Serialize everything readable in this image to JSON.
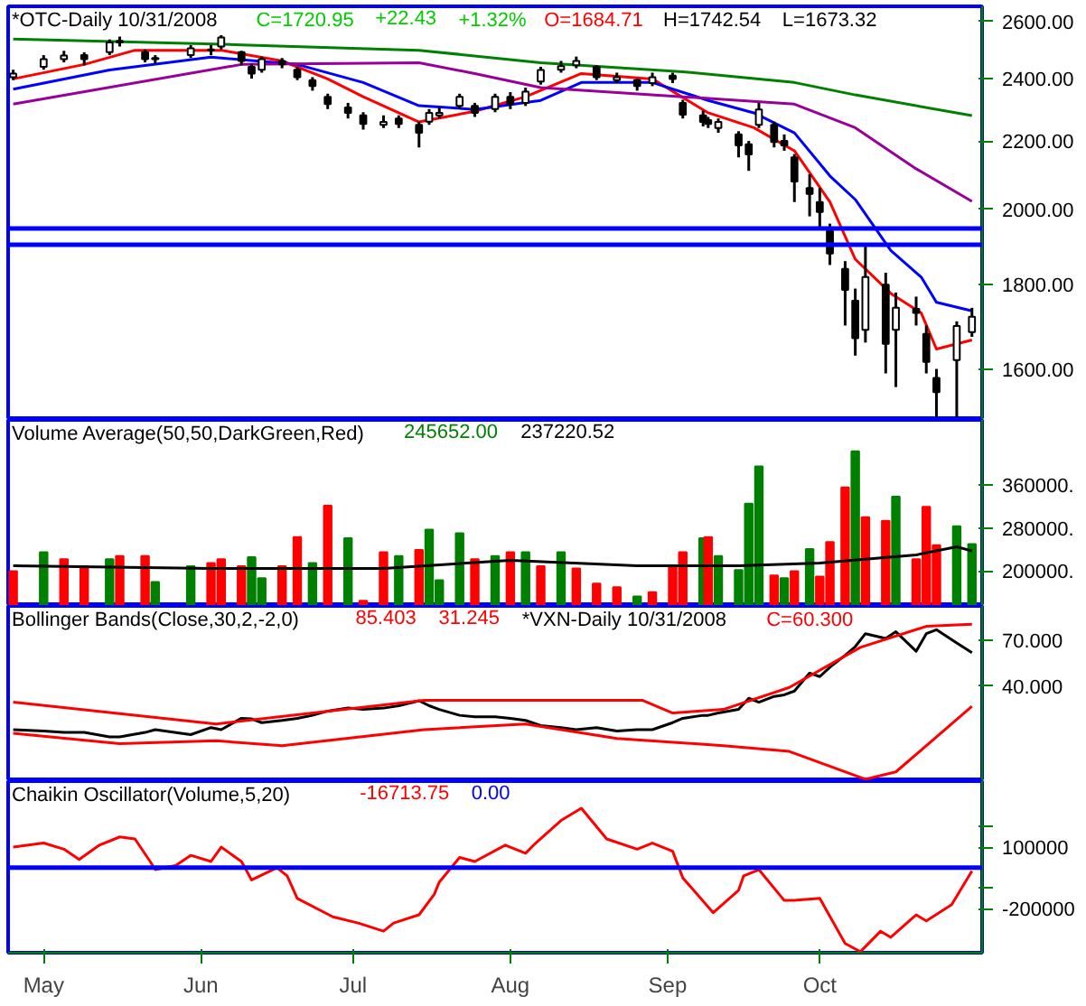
{
  "chart_data": [
    {
      "type": "candlestick",
      "title": "*OTC-Daily 10/31/2008",
      "annotations": [
        "C=1720.95",
        "+22.43",
        "+1.32%",
        "O=1684.71",
        "H=1742.54",
        "L=1673.32"
      ],
      "x": [
        "2008-04-25",
        "2008-05-01",
        "2008-05-05",
        "2008-05-09",
        "2008-05-14",
        "2008-05-16",
        "2008-05-21",
        "2008-05-23",
        "2008-05-30",
        "2008-06-03",
        "2008-06-05",
        "2008-06-09",
        "2008-06-11",
        "2008-06-13",
        "2008-06-17",
        "2008-06-20",
        "2008-06-23",
        "2008-06-26",
        "2008-06-30",
        "2008-07-03",
        "2008-07-07",
        "2008-07-10",
        "2008-07-14",
        "2008-07-16",
        "2008-07-18",
        "2008-07-22",
        "2008-07-25",
        "2008-07-29",
        "2008-08-01",
        "2008-08-04",
        "2008-08-07",
        "2008-08-11",
        "2008-08-14",
        "2008-08-18",
        "2008-08-22",
        "2008-08-26",
        "2008-08-29",
        "2008-09-02",
        "2008-09-04",
        "2008-09-08",
        "2008-09-09",
        "2008-09-11",
        "2008-09-15",
        "2008-09-17",
        "2008-09-19",
        "2008-09-22",
        "2008-09-24",
        "2008-09-26",
        "2008-09-29",
        "2008-10-01",
        "2008-10-03",
        "2008-10-06",
        "2008-10-08",
        "2008-10-10",
        "2008-10-14",
        "2008-10-16",
        "2008-10-20",
        "2008-10-22",
        "2008-10-24",
        "2008-10-28",
        "2008-10-31"
      ],
      "ohlc": [
        [
          2405,
          2430,
          2395,
          2417
        ],
        [
          2440,
          2480,
          2430,
          2466
        ],
        [
          2466,
          2495,
          2455,
          2479
        ],
        [
          2480,
          2490,
          2445,
          2466
        ],
        [
          2490,
          2535,
          2480,
          2524
        ],
        [
          2524,
          2545,
          2510,
          2530
        ],
        [
          2490,
          2500,
          2455,
          2466
        ],
        [
          2470,
          2480,
          2450,
          2466
        ],
        [
          2480,
          2515,
          2470,
          2504
        ],
        [
          2500,
          2515,
          2480,
          2497
        ],
        [
          2510,
          2550,
          2500,
          2542
        ],
        [
          2490,
          2495,
          2445,
          2460
        ],
        [
          2440,
          2450,
          2400,
          2417
        ],
        [
          2430,
          2475,
          2420,
          2466
        ],
        [
          2460,
          2470,
          2435,
          2448
        ],
        [
          2430,
          2440,
          2395,
          2405
        ],
        [
          2395,
          2405,
          2360,
          2375
        ],
        [
          2340,
          2350,
          2300,
          2316
        ],
        [
          2305,
          2320,
          2270,
          2288
        ],
        [
          2280,
          2290,
          2235,
          2253
        ],
        [
          2250,
          2280,
          2240,
          2259
        ],
        [
          2270,
          2280,
          2240,
          2253
        ],
        [
          2250,
          2260,
          2180,
          2225
        ],
        [
          2260,
          2300,
          2250,
          2288
        ],
        [
          2280,
          2305,
          2270,
          2288
        ],
        [
          2310,
          2350,
          2300,
          2340
        ],
        [
          2310,
          2320,
          2275,
          2288
        ],
        [
          2300,
          2350,
          2290,
          2340
        ],
        [
          2340,
          2355,
          2300,
          2316
        ],
        [
          2320,
          2370,
          2310,
          2357
        ],
        [
          2390,
          2440,
          2380,
          2429
        ],
        [
          2430,
          2460,
          2420,
          2442
        ],
        [
          2445,
          2475,
          2435,
          2460
        ],
        [
          2440,
          2445,
          2395,
          2405
        ],
        [
          2395,
          2420,
          2385,
          2405
        ],
        [
          2395,
          2400,
          2360,
          2375
        ],
        [
          2385,
          2420,
          2375,
          2405
        ],
        [
          2410,
          2420,
          2385,
          2399
        ],
        [
          2320,
          2330,
          2270,
          2282
        ],
        [
          2280,
          2295,
          2245,
          2259
        ],
        [
          2265,
          2275,
          2240,
          2253
        ],
        [
          2240,
          2270,
          2225,
          2259
        ],
        [
          2220,
          2230,
          2150,
          2186
        ],
        [
          2190,
          2200,
          2110,
          2159
        ],
        [
          2250,
          2320,
          2240,
          2299
        ],
        [
          2250,
          2260,
          2180,
          2197
        ],
        [
          2200,
          2220,
          2170,
          2186
        ],
        [
          2150,
          2160,
          2020,
          2079
        ],
        [
          2060,
          2100,
          1980,
          2043
        ],
        [
          2020,
          2060,
          1950,
          1992
        ],
        [
          1940,
          1960,
          1850,
          1880
        ],
        [
          1840,
          1860,
          1700,
          1787
        ],
        [
          1760,
          1790,
          1630,
          1670
        ],
        [
          1690,
          1900,
          1660,
          1819
        ],
        [
          1800,
          1830,
          1590,
          1657
        ],
        [
          1690,
          1780,
          1560,
          1743
        ],
        [
          1740,
          1770,
          1700,
          1730
        ],
        [
          1680,
          1700,
          1590,
          1616
        ],
        [
          1580,
          1600,
          1495,
          1549
        ],
        [
          1620,
          1710,
          1495,
          1699
        ],
        [
          1684.71,
          1742.54,
          1673.32,
          1720.95
        ]
      ],
      "series": [
        {
          "type": "line",
          "color": "#ff0000",
          "x": [
            "2008-04-25",
            "2008-05-09",
            "2008-05-19",
            "2008-06-05",
            "2008-06-17",
            "2008-06-26",
            "2008-07-03",
            "2008-07-14",
            "2008-07-25",
            "2008-08-04",
            "2008-08-15",
            "2008-08-29",
            "2008-09-09",
            "2008-09-18",
            "2008-09-26",
            "2008-10-03",
            "2008-10-08",
            "2008-10-15",
            "2008-10-21",
            "2008-10-24",
            "2008-10-31"
          ],
          "values": [
            2399,
            2448,
            2497,
            2497,
            2460,
            2399,
            2340,
            2259,
            2293,
            2340,
            2417,
            2399,
            2288,
            2241,
            2170,
            2020,
            1865,
            1778,
            1730,
            1645,
            1666
          ]
        },
        {
          "type": "line",
          "color": "#0000ff",
          "x": [
            "2008-04-25",
            "2008-05-14",
            "2008-06-03",
            "2008-06-20",
            "2008-07-03",
            "2008-07-14",
            "2008-07-25",
            "2008-08-07",
            "2008-08-15",
            "2008-08-29",
            "2008-09-09",
            "2008-09-18",
            "2008-09-26",
            "2008-10-03",
            "2008-10-08",
            "2008-10-15",
            "2008-10-21",
            "2008-10-24",
            "2008-10-31"
          ],
          "values": [
            2365,
            2429,
            2473,
            2448,
            2387,
            2311,
            2299,
            2328,
            2387,
            2387,
            2328,
            2288,
            2225,
            2095,
            2027,
            1888,
            1819,
            1756,
            1735
          ]
        },
        {
          "type": "line",
          "color": "#990099",
          "x": [
            "2008-04-25",
            "2008-06-09",
            "2008-07-14",
            "2008-07-25",
            "2008-08-07",
            "2008-09-04",
            "2008-09-26",
            "2008-10-08",
            "2008-10-20",
            "2008-10-31"
          ],
          "values": [
            2316,
            2448,
            2454,
            2417,
            2370,
            2340,
            2316,
            2241,
            2116,
            2022
          ]
        },
        {
          "type": "line",
          "color": "#008000",
          "x": [
            "2008-04-25",
            "2008-06-09",
            "2008-07-14",
            "2008-08-07",
            "2008-09-04",
            "2008-09-26",
            "2008-10-08",
            "2008-10-31"
          ],
          "values": [
            2536,
            2516,
            2497,
            2454,
            2423,
            2387,
            2346,
            2279
          ]
        }
      ],
      "ref_lines": [
        {
          "axis": "y",
          "value": 1947,
          "color": "#0000ff"
        },
        {
          "axis": "y",
          "value": 1903,
          "color": "#0000ff"
        }
      ],
      "log": true,
      "ylim": [
        1490,
        2655
      ],
      "yticks": [
        {
          "value": 1600,
          "label": "1600.00"
        },
        {
          "value": 1800,
          "label": "1800.00"
        },
        {
          "value": 2000,
          "label": "2000.00"
        },
        {
          "value": 2200,
          "label": "2200.00"
        },
        {
          "value": 2400,
          "label": "2400.00"
        },
        {
          "value": 2600,
          "label": "2600.00"
        }
      ],
      "xlim": [
        "2008-04-24",
        "2008-11-02"
      ],
      "tick_labels": "y"
    },
    {
      "type": "bar",
      "title": "Volume Average(50,50,DarkGreen,Red)",
      "annotations": [
        "245652.00",
        "237220.52"
      ],
      "x": [
        "2008-04-25",
        "2008-05-01",
        "2008-05-05",
        "2008-05-09",
        "2008-05-14",
        "2008-05-16",
        "2008-05-21",
        "2008-05-23",
        "2008-05-30",
        "2008-06-03",
        "2008-06-05",
        "2008-06-09",
        "2008-06-11",
        "2008-06-13",
        "2008-06-17",
        "2008-06-20",
        "2008-06-23",
        "2008-06-26",
        "2008-06-30",
        "2008-07-03",
        "2008-07-07",
        "2008-07-10",
        "2008-07-14",
        "2008-07-16",
        "2008-07-18",
        "2008-07-22",
        "2008-07-25",
        "2008-07-29",
        "2008-08-01",
        "2008-08-04",
        "2008-08-07",
        "2008-08-11",
        "2008-08-14",
        "2008-08-18",
        "2008-08-22",
        "2008-08-26",
        "2008-08-29",
        "2008-09-02",
        "2008-09-04",
        "2008-09-08",
        "2008-09-09",
        "2008-09-11",
        "2008-09-15",
        "2008-09-17",
        "2008-09-19",
        "2008-09-22",
        "2008-09-24",
        "2008-09-26",
        "2008-09-29",
        "2008-10-01",
        "2008-10-03",
        "2008-10-06",
        "2008-10-08",
        "2008-10-10",
        "2008-10-14",
        "2008-10-16",
        "2008-10-20",
        "2008-10-22",
        "2008-10-24",
        "2008-10-28",
        "2008-10-31"
      ],
      "series": [
        {
          "type": "bar",
          "values": [
            200000,
            235000,
            222000,
            209000,
            222000,
            228000,
            228000,
            180000,
            209000,
            215000,
            222000,
            209000,
            226000,
            187000,
            209000,
            263000,
            215000,
            321000,
            261000,
            145000,
            235000,
            228000,
            239000,
            277000,
            183000,
            270000,
            222000,
            228000,
            235000,
            235000,
            209000,
            235000,
            205000,
            177000,
            170000,
            153000,
            161000,
            209000,
            235000,
            261000,
            263000,
            228000,
            202000,
            325000,
            394000,
            192000,
            187000,
            200000,
            241000,
            190000,
            254000,
            355000,
            422000,
            300000,
            293000,
            338000,
            222000,
            319000,
            248000,
            283000,
            250000
          ],
          "colors": [
            "#ff0000",
            "#008000",
            "#ff0000",
            "#ff0000",
            "#008000",
            "#ff0000",
            "#ff0000",
            "#008000",
            "#008000",
            "#ff0000",
            "#ff0000",
            "#ff0000",
            "#008000",
            "#008000",
            "#ff0000",
            "#ff0000",
            "#008000",
            "#ff0000",
            "#008000",
            "#ff0000",
            "#ff0000",
            "#008000",
            "#ff0000",
            "#008000",
            "#008000",
            "#008000",
            "#ff0000",
            "#008000",
            "#ff0000",
            "#008000",
            "#ff0000",
            "#008000",
            "#ff0000",
            "#ff0000",
            "#ff0000",
            "#008000",
            "#ff0000",
            "#ff0000",
            "#ff0000",
            "#008000",
            "#ff0000",
            "#008000",
            "#008000",
            "#008000",
            "#008000",
            "#ff0000",
            "#008000",
            "#ff0000",
            "#008000",
            "#ff0000",
            "#ff0000",
            "#ff0000",
            "#008000",
            "#ff0000",
            "#ff0000",
            "#008000",
            "#ff0000",
            "#ff0000",
            "#ff0000",
            "#008000",
            "#008000"
          ]
        },
        {
          "type": "line",
          "color": "#000000",
          "x": [
            "2008-04-25",
            "2008-06-03",
            "2008-07-07",
            "2008-08-01",
            "2008-08-26",
            "2008-09-15",
            "2008-10-01",
            "2008-10-20",
            "2008-10-28",
            "2008-10-31"
          ],
          "values": [
            210000,
            205000,
            205000,
            220000,
            210000,
            210000,
            215000,
            230000,
            245000,
            237220.52
          ]
        }
      ],
      "ylim": [
        135500,
        480000
      ],
      "yticks": [
        {
          "value": 200000,
          "label": "200000."
        },
        {
          "value": 280000,
          "label": "280000."
        },
        {
          "value": 360000,
          "label": "360000."
        }
      ],
      "xlim": [
        "2008-04-24",
        "2008-11-02"
      ],
      "tick_labels": "y"
    },
    {
      "type": "line",
      "title": "Bollinger Bands(Close,30,2,-2,0)",
      "annotations": [
        "85.403",
        "31.245",
        "*VXN-Daily 10/31/2008",
        "C=60.300"
      ],
      "series": [
        {
          "color": "#000000",
          "x": [
            "2008-04-25",
            "2008-05-01",
            "2008-05-05",
            "2008-05-09",
            "2008-05-14",
            "2008-05-16",
            "2008-05-21",
            "2008-05-23",
            "2008-05-30",
            "2008-06-03",
            "2008-06-05",
            "2008-06-09",
            "2008-06-11",
            "2008-06-13",
            "2008-06-17",
            "2008-06-20",
            "2008-06-23",
            "2008-06-26",
            "2008-06-30",
            "2008-07-03",
            "2008-07-07",
            "2008-07-10",
            "2008-07-14",
            "2008-07-16",
            "2008-07-18",
            "2008-07-22",
            "2008-07-25",
            "2008-07-29",
            "2008-08-01",
            "2008-08-04",
            "2008-08-07",
            "2008-08-11",
            "2008-08-14",
            "2008-08-18",
            "2008-08-22",
            "2008-08-26",
            "2008-08-29",
            "2008-09-02",
            "2008-09-04",
            "2008-09-08",
            "2008-09-09",
            "2008-09-11",
            "2008-09-15",
            "2008-09-17",
            "2008-09-19",
            "2008-09-22",
            "2008-09-24",
            "2008-09-26",
            "2008-09-29",
            "2008-10-01",
            "2008-10-03",
            "2008-10-06",
            "2008-10-08",
            "2008-10-10",
            "2008-10-14",
            "2008-10-16",
            "2008-10-20",
            "2008-10-22",
            "2008-10-24",
            "2008-10-28",
            "2008-10-31"
          ],
          "values": [
            23.5,
            23.1,
            22.7,
            22.7,
            21.5,
            21.5,
            22.7,
            23.5,
            22.1,
            24.1,
            23.5,
            27.0,
            26.8,
            25.6,
            26.3,
            27.0,
            28.0,
            29.5,
            30.6,
            30.1,
            30.6,
            31.5,
            33.5,
            31.5,
            30.1,
            28.0,
            27.5,
            27.5,
            27.0,
            26.3,
            24.7,
            24.1,
            23.5,
            24.1,
            23.1,
            23.5,
            23.5,
            25.6,
            27.0,
            28.0,
            28.0,
            28.8,
            30.1,
            34.5,
            32.9,
            35.3,
            36.0,
            37.7,
            47.0,
            45.0,
            50.5,
            58.5,
            65.0,
            76.2,
            71.8,
            78.0,
            61.4,
            76.2,
            80.0,
            68.0,
            60.3
          ]
        },
        {
          "color": "#ff0000",
          "x": [
            "2008-04-25",
            "2008-06-04",
            "2008-07-15",
            "2008-08-27",
            "2008-09-02",
            "2008-09-12",
            "2008-09-25",
            "2008-10-09",
            "2008-10-22",
            "2008-10-31"
          ],
          "values": [
            32.9,
            25.2,
            33.7,
            33.7,
            28.8,
            30.1,
            39.4,
            64.4,
            83.3,
            85.403
          ]
        },
        {
          "color": "#ff0000",
          "x": [
            "2008-04-25",
            "2008-05-16",
            "2008-06-04",
            "2008-06-17",
            "2008-07-15",
            "2008-08-04",
            "2008-08-22",
            "2008-09-12",
            "2008-09-25",
            "2008-10-10",
            "2008-10-16",
            "2008-10-31"
          ],
          "values": [
            22.5,
            19.8,
            20.5,
            19.3,
            23.5,
            25.2,
            21.1,
            19.3,
            18.0,
            12.8,
            14.0,
            31.245
          ]
        }
      ],
      "log": true,
      "ylim": [
        12.5,
        107
      ],
      "yticks": [
        {
          "value": 40,
          "label": "40.000"
        },
        {
          "value": 70,
          "label": "70.000"
        }
      ],
      "xlim": [
        "2008-04-24",
        "2008-11-02"
      ],
      "tick_labels": "y"
    },
    {
      "type": "line",
      "title": "Chaikin Oscillator(Volume,5,20)",
      "annotations": [
        "-16713.75",
        "0.00"
      ],
      "series": [
        {
          "color": "#ff0000",
          "x": [
            "2008-04-25",
            "2008-05-01",
            "2008-05-05",
            "2008-05-08",
            "2008-05-12",
            "2008-05-16",
            "2008-05-19",
            "2008-05-22",
            "2008-05-23",
            "2008-05-27",
            "2008-05-30",
            "2008-06-03",
            "2008-06-05",
            "2008-06-09",
            "2008-06-11",
            "2008-06-16",
            "2008-06-18",
            "2008-06-20",
            "2008-06-27",
            "2008-07-02",
            "2008-07-07",
            "2008-07-09",
            "2008-07-14",
            "2008-07-17",
            "2008-07-18",
            "2008-07-22",
            "2008-07-25",
            "2008-07-31",
            "2008-08-04",
            "2008-08-06",
            "2008-08-11",
            "2008-08-15",
            "2008-08-20",
            "2008-08-26",
            "2008-08-29",
            "2008-09-02",
            "2008-09-04",
            "2008-09-10",
            "2008-09-15",
            "2008-09-16",
            "2008-09-19",
            "2008-09-24",
            "2008-09-26",
            "2008-10-01",
            "2008-10-06",
            "2008-10-09",
            "2008-10-13",
            "2008-10-15",
            "2008-10-20",
            "2008-10-22",
            "2008-10-27",
            "2008-10-31"
          ],
          "values": [
            100000,
            120000,
            90000,
            40000,
            110000,
            150000,
            140000,
            30000,
            -10000,
            10000,
            60000,
            30000,
            100000,
            30000,
            -60000,
            0,
            -40000,
            -150000,
            -240000,
            -270000,
            -310000,
            -270000,
            -230000,
            -130000,
            -70000,
            50000,
            30000,
            110000,
            70000,
            120000,
            230000,
            290000,
            140000,
            90000,
            120000,
            80000,
            -50000,
            -220000,
            -110000,
            -40000,
            -10000,
            -160000,
            -160000,
            -150000,
            -370000,
            -410000,
            -310000,
            -340000,
            -230000,
            -260000,
            -180000,
            -16713.75
          ]
        }
      ],
      "ref_lines": [
        {
          "axis": "y",
          "value": 0,
          "color": "#0000ff"
        }
      ],
      "ylim": [
        -415000,
        422000
      ],
      "yticks": [
        {
          "value": 200000,
          "label": null
        },
        {
          "value": 100000,
          "label": "100000"
        },
        {
          "value": -100000,
          "label": null
        },
        {
          "value": -200000,
          "label": "-200000"
        }
      ],
      "xlim": [
        "2008-04-24",
        "2008-11-02"
      ],
      "xticks": [
        {
          "value": "2008-05-01",
          "label": "May"
        },
        {
          "value": "2008-06-01",
          "label": "Jun"
        },
        {
          "value": "2008-07-01",
          "label": "Jul"
        },
        {
          "value": "2008-08-01",
          "label": "Aug"
        },
        {
          "value": "2008-09-01",
          "label": "Sep"
        },
        {
          "value": "2008-10-01",
          "label": "Oct"
        }
      ]
    }
  ]
}
